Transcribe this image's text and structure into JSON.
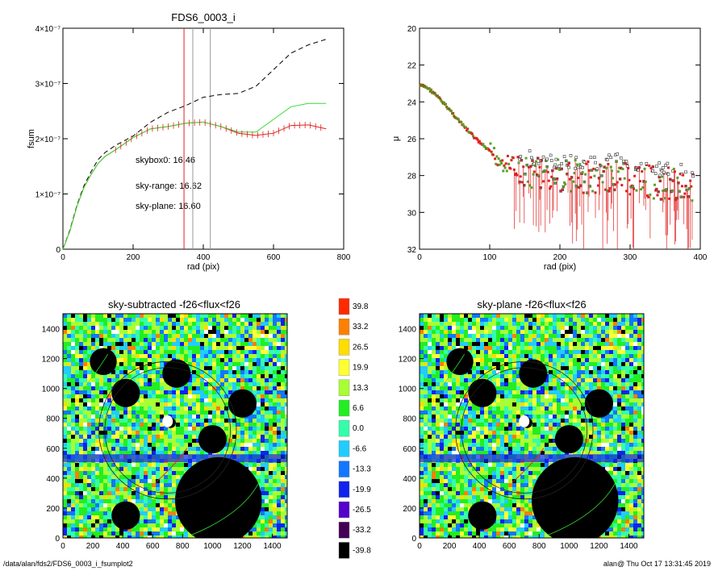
{
  "footer": {
    "left": "/data/alan/fds2/FDS6_0003_i_fsumplot2",
    "right": "alan@  Thu Oct 17 13:31:45 2019"
  },
  "colors": {
    "skybox": "#000000",
    "skyrange": "#e02020",
    "skyplane": "#33dd33",
    "frame": "#000000"
  },
  "chart_data": [
    {
      "type": "line",
      "title": "FDS6_0003_i",
      "xlabel": "rad (pix)",
      "ylabel": "fsum",
      "xlim": [
        0,
        800
      ],
      "ylim": [
        0,
        4e-07
      ],
      "x_ticks": [
        "0",
        "200",
        "400",
        "600",
        "800"
      ],
      "y_ticks": [
        "0",
        "1×10⁻⁷",
        "2×10⁻⁷",
        "3×10⁻⁷",
        "4×10⁻⁷"
      ],
      "vlines": [
        345,
        370,
        420
      ],
      "annotations": [
        {
          "text": "skybox0: 16.46",
          "color": "#000000"
        },
        {
          "text": "sky-range: 16.62",
          "color": "#e02020"
        },
        {
          "text": "sky-plane: 16.60",
          "color": "#33dd33"
        }
      ],
      "series": [
        {
          "style": "dashed",
          "color": "#000000",
          "x": [
            0,
            20,
            40,
            60,
            80,
            100,
            120,
            150,
            200,
            250,
            300,
            350,
            400,
            450,
            500,
            550,
            600,
            650,
            700,
            750
          ],
          "y": [
            0,
            3.5e-08,
            8e-08,
            1.15e-07,
            1.4e-07,
            1.62e-07,
            1.75e-07,
            1.88e-07,
            2.05e-07,
            2.3e-07,
            2.48e-07,
            2.6e-07,
            2.75e-07,
            2.8e-07,
            2.82e-07,
            2.95e-07,
            3.25e-07,
            3.55e-07,
            3.7e-07,
            3.8e-07
          ]
        },
        {
          "style": "solid",
          "color": "#e02020",
          "x": [
            0,
            20,
            40,
            60,
            80,
            100,
            120,
            150,
            200,
            250,
            300,
            350,
            400,
            450,
            500,
            550,
            600,
            650,
            700,
            750
          ],
          "y": [
            0,
            3.3e-08,
            7.8e-08,
            1.12e-07,
            1.35e-07,
            1.55e-07,
            1.68e-07,
            1.8e-07,
            2.02e-07,
            2.18e-07,
            2.22e-07,
            2.28e-07,
            2.3e-07,
            2.22e-07,
            2.1e-07,
            2.06e-07,
            2.1e-07,
            2.24e-07,
            2.25e-07,
            2.18e-07
          ]
        },
        {
          "style": "solid",
          "color": "#33dd33",
          "x": [
            0,
            20,
            40,
            60,
            80,
            100,
            120,
            150,
            200,
            250,
            300,
            350,
            400,
            450,
            500,
            550,
            600,
            650,
            700,
            750
          ],
          "y": [
            0,
            3.3e-08,
            7.8e-08,
            1.12e-07,
            1.35e-07,
            1.55e-07,
            1.68e-07,
            1.8e-07,
            2.02e-07,
            2.18e-07,
            2.22e-07,
            2.28e-07,
            2.3e-07,
            2.22e-07,
            2.12e-07,
            2.12e-07,
            2.35e-07,
            2.58e-07,
            2.64e-07,
            2.64e-07
          ]
        }
      ]
    },
    {
      "type": "scatter",
      "xlabel": "rad (pix)",
      "ylabel": "μ",
      "xlim": [
        0,
        400
      ],
      "ylim": [
        32,
        20
      ],
      "x_ticks": [
        "0",
        "100",
        "200",
        "300",
        "400"
      ],
      "y_ticks": [
        "20",
        "22",
        "24",
        "26",
        "28",
        "30",
        "32"
      ],
      "trend": {
        "x": [
          0,
          10,
          20,
          40,
          60,
          80,
          100,
          120,
          140,
          160,
          200,
          240,
          280,
          320,
          360,
          390
        ],
        "y": [
          23.1,
          23.2,
          23.5,
          24.3,
          25.2,
          26.0,
          26.7,
          27.3,
          27.6,
          27.8,
          28.0,
          28.1,
          28.0,
          28.3,
          28.5,
          28.7
        ]
      }
    },
    {
      "type": "heatmap",
      "title": "sky-subtracted -f26<flux<f26",
      "xlim": [
        0,
        1500
      ],
      "ylim": [
        0,
        1500
      ],
      "x_ticks": [
        "0",
        "200",
        "400",
        "600",
        "800",
        "1000",
        "1200",
        "1400"
      ],
      "y_ticks": [
        "0",
        "200",
        "400",
        "600",
        "800",
        "1000",
        "1200",
        "1400"
      ]
    },
    {
      "type": "heatmap",
      "title": "sky-plane -f26<flux<f26",
      "xlim": [
        0,
        1500
      ],
      "ylim": [
        0,
        1500
      ],
      "x_ticks": [
        "0",
        "200",
        "400",
        "600",
        "800",
        "1000",
        "1200",
        "1400"
      ],
      "y_ticks": [
        "0",
        "200",
        "400",
        "600",
        "800",
        "1000",
        "1200",
        "1400"
      ]
    }
  ],
  "colorbar": {
    "labels": [
      "39.8",
      "33.2",
      "26.5",
      "19.9",
      "13.3",
      "6.6",
      "0.0",
      "-6.6",
      "-13.3",
      "-19.9",
      "-26.5",
      "-33.2",
      "-39.8"
    ],
    "colors": [
      "#ff2a00",
      "#ff8000",
      "#ffdd00",
      "#ffff33",
      "#a8ff33",
      "#22ee22",
      "#33ffaa",
      "#22ccff",
      "#1177ff",
      "#1122ee",
      "#5500cc",
      "#440055",
      "#000000"
    ]
  },
  "masks": [
    {
      "x": 1040,
      "y": 250,
      "r": 290
    },
    {
      "x": 270,
      "y": 1180,
      "r": 90
    },
    {
      "x": 760,
      "y": 1100,
      "r": 95
    },
    {
      "x": 420,
      "y": 970,
      "r": 95
    },
    {
      "x": 1200,
      "y": 900,
      "r": 95
    },
    {
      "x": 1000,
      "y": 660,
      "r": 95
    },
    {
      "x": 420,
      "y": 150,
      "r": 95
    },
    {
      "x": 720,
      "y": 770,
      "r": 35
    }
  ]
}
